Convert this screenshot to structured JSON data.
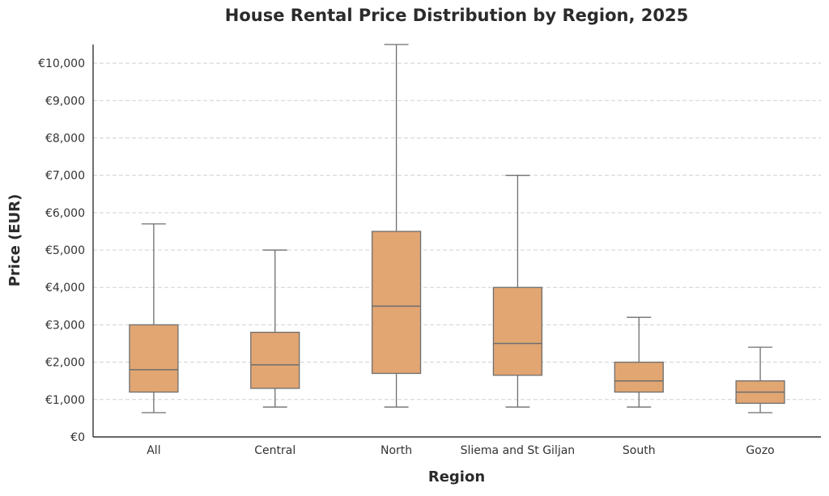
{
  "chart_data": {
    "type": "box",
    "title": "House Rental Price Distribution by Region, 2025",
    "xlabel": "Region",
    "ylabel": "Price (EUR)",
    "ylim": [
      0,
      10500
    ],
    "yticks": [
      0,
      1000,
      2000,
      3000,
      4000,
      5000,
      6000,
      7000,
      8000,
      9000,
      10000
    ],
    "ytick_labels": [
      "€0",
      "€1,000",
      "€2,000",
      "€3,000",
      "€4,000",
      "€5,000",
      "€6,000",
      "€7,000",
      "€8,000",
      "€9,000",
      "€10,000"
    ],
    "grid": "horizontal dashed",
    "box_color": "#e2a673",
    "edge_color": "#6e6e6e",
    "categories": [
      "All",
      "Central",
      "North",
      "Sliema and St Giljan",
      "South",
      "Gozo"
    ],
    "boxes": [
      {
        "category": "All",
        "whislo": 650,
        "q1": 1200,
        "med": 1800,
        "q3": 3000,
        "whishi": 5700
      },
      {
        "category": "Central",
        "whislo": 800,
        "q1": 1300,
        "med": 1930,
        "q3": 2800,
        "whishi": 5000
      },
      {
        "category": "North",
        "whislo": 800,
        "q1": 1700,
        "med": 3500,
        "q3": 5500,
        "whishi": 10500
      },
      {
        "category": "Sliema and St Giljan",
        "whislo": 800,
        "q1": 1650,
        "med": 2500,
        "q3": 4000,
        "whishi": 7000
      },
      {
        "category": "South",
        "whislo": 800,
        "q1": 1200,
        "med": 1500,
        "q3": 2000,
        "whishi": 3200
      },
      {
        "category": "Gozo",
        "whislo": 650,
        "q1": 900,
        "med": 1200,
        "q3": 1500,
        "whishi": 2400
      }
    ]
  }
}
